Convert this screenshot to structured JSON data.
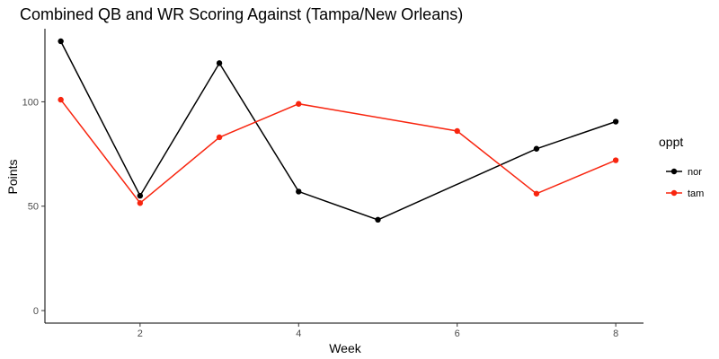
{
  "chart_data": {
    "type": "line",
    "title": "Combined QB and WR Scoring Against (Tampa/New Orleans)",
    "xlabel": "Week",
    "ylabel": "Points",
    "xlim": [
      0.8,
      8.35
    ],
    "ylim": [
      -6,
      135
    ],
    "x_ticks": [
      2,
      4,
      6,
      8
    ],
    "y_ticks": [
      0,
      50,
      100
    ],
    "grid": false,
    "legend": {
      "title": "oppt",
      "position": "right"
    },
    "series": [
      {
        "name": "nor",
        "color": "#000000",
        "points": [
          {
            "x": 1,
            "y": 129
          },
          {
            "x": 2,
            "y": 55
          },
          {
            "x": 3,
            "y": 118.5
          },
          {
            "x": 4,
            "y": 57
          },
          {
            "x": 5,
            "y": 43.5
          },
          {
            "x": 7,
            "y": 77.5
          },
          {
            "x": 8,
            "y": 90.5
          }
        ]
      },
      {
        "name": "tam",
        "color": "#f8250f",
        "points": [
          {
            "x": 1,
            "y": 101
          },
          {
            "x": 2,
            "y": 51.5
          },
          {
            "x": 3,
            "y": 83
          },
          {
            "x": 4,
            "y": 99
          },
          {
            "x": 6,
            "y": 86
          },
          {
            "x": 7,
            "y": 56
          },
          {
            "x": 8,
            "y": 72
          }
        ]
      }
    ]
  }
}
